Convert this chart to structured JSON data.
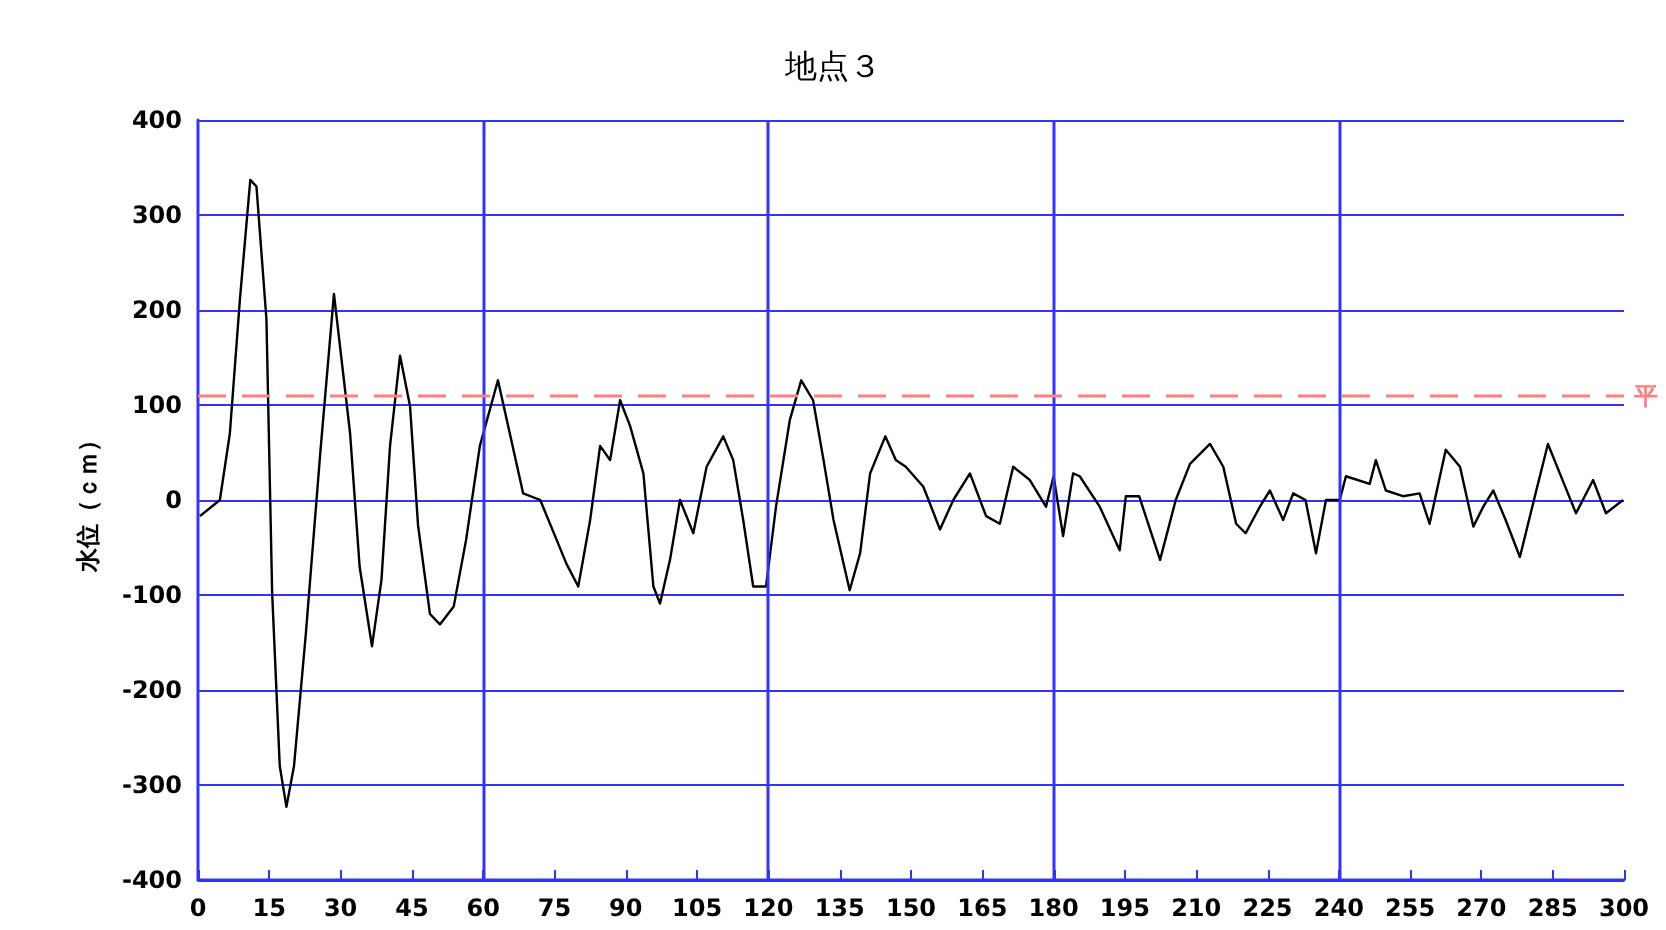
{
  "chart_data": {
    "type": "line",
    "title": "地点３",
    "ylabel": "水位（ｃｍ）",
    "xlim": [
      0,
      300
    ],
    "xticks": [
      0,
      15,
      30,
      45,
      60,
      75,
      90,
      105,
      120,
      135,
      150,
      165,
      180,
      195,
      210,
      225,
      240,
      255,
      270,
      285,
      300
    ],
    "ylim": [
      -400,
      400
    ],
    "yticks": [
      -400,
      -300,
      -200,
      -100,
      0,
      100,
      200,
      300,
      400
    ],
    "grid": "y",
    "marker": "none",
    "line_style": "solid",
    "ref_lines": [
      {
        "axis": "y",
        "value": 110,
        "label": "平",
        "color": "#ff8080",
        "line_style": "dashed"
      },
      {
        "axis": "x",
        "value": 60,
        "label": null,
        "color": "#3333ff",
        "line_style": "solid"
      },
      {
        "axis": "x",
        "value": 120,
        "label": null,
        "color": "#3333ff",
        "line_style": "solid"
      },
      {
        "axis": "x",
        "value": 180,
        "label": null,
        "color": "#3333ff",
        "line_style": "solid"
      },
      {
        "axis": "x",
        "value": 240,
        "label": null,
        "color": "#3333ff",
        "line_style": "solid"
      }
    ],
    "series": [
      {
        "color": "#000000",
        "x": [
          0.4,
          4.6,
          6.7,
          8.8,
          11,
          12.3,
          14.4,
          15.6,
          17.2,
          18.6,
          20.2,
          22.7,
          25.7,
          28.6,
          32,
          34,
          36.6,
          38.6,
          40.4,
          42.5,
          44.6,
          46.3,
          48.8,
          50.9,
          53.8,
          56.4,
          59.3,
          63.1,
          65.6,
          68.4,
          72,
          77.5,
          80,
          82.5,
          84.6,
          86.7,
          88.8,
          90.9,
          93.7,
          95.8,
          97.2,
          99.3,
          101.4,
          104.2,
          107,
          110.5,
          112.6,
          114.7,
          116.8,
          119.5,
          121.6,
          124.5,
          126.9,
          129.4,
          131.6,
          133.7,
          137.1,
          139.3,
          141.4,
          144.6,
          146.8,
          148.9,
          152.6,
          156.1,
          158.9,
          162.4,
          165.8,
          168.7,
          171.5,
          175,
          178.4,
          180,
          182,
          184.1,
          185.5,
          189.7,
          193.9,
          195.2,
          198,
          202.4,
          205.7,
          208.7,
          212.9,
          215.7,
          218.4,
          220.4,
          223.4,
          225.5,
          228.3,
          230.4,
          233,
          235.2,
          237.3,
          240.2,
          241.5,
          246.5,
          247.8,
          249.9,
          253.5,
          257,
          259.1,
          262.5,
          265.5,
          268.3,
          270.4,
          272.5,
          275.1,
          278.1,
          281.4,
          284,
          286.5,
          289.9,
          293.5,
          296.2,
          299.8
        ],
        "values": [
          -17,
          0,
          70,
          210,
          337,
          330,
          190,
          -98,
          -280,
          -323,
          -280,
          -140,
          48,
          217,
          70,
          -70,
          -154,
          -84,
          57,
          152,
          99,
          -27,
          -120,
          -131,
          -112,
          -42,
          57,
          126,
          70,
          7,
          0,
          -67,
          -91,
          -21,
          57,
          42,
          105,
          78,
          28,
          -91,
          -109,
          -63,
          0,
          -35,
          35,
          67,
          42,
          -21,
          -91,
          -91,
          -7,
          84,
          126,
          105,
          42,
          -21,
          -95,
          -56,
          28,
          67,
          42,
          35,
          14,
          -31,
          0,
          28,
          -17,
          -25,
          35,
          21,
          -7,
          25,
          -38,
          28,
          25,
          -7,
          -53,
          4,
          4,
          -63,
          0,
          38,
          59,
          35,
          -25,
          -35,
          -7,
          10,
          -21,
          7,
          0,
          -56,
          0,
          0,
          25,
          17,
          42,
          10,
          4,
          7,
          -25,
          53,
          35,
          -28,
          -7,
          10,
          -21,
          -60,
          7,
          59,
          28,
          -14,
          21,
          -14,
          0
        ]
      }
    ]
  }
}
